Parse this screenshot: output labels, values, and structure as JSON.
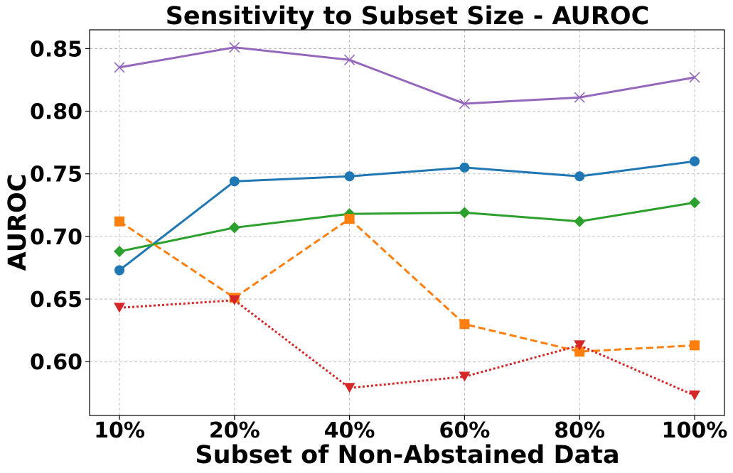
{
  "chart_data": {
    "type": "line",
    "title": "Sensitivity to Subset Size - AUROC",
    "xlabel": "Subset of Non-Abstained Data",
    "ylabel": "AUROC",
    "categories": [
      "10%",
      "20%",
      "40%",
      "60%",
      "80%",
      "100%"
    ],
    "ylim": [
      0.557,
      0.865
    ],
    "yticks": [
      0.6,
      0.65,
      0.7,
      0.75,
      0.8,
      0.85
    ],
    "ytick_labels": [
      "0.60",
      "0.65",
      "0.70",
      "0.75",
      "0.80",
      "0.85"
    ],
    "grid": true,
    "series": [
      {
        "values": [
          0.835,
          0.851,
          0.841,
          0.806,
          0.811,
          0.827
        ],
        "color": "#9467bd",
        "marker": "x",
        "linestyle": "solid"
      },
      {
        "values": [
          0.673,
          0.744,
          0.748,
          0.755,
          0.748,
          0.76
        ],
        "color": "#1f77b4",
        "marker": "circle",
        "linestyle": "solid"
      },
      {
        "values": [
          0.688,
          0.707,
          0.718,
          0.719,
          0.712,
          0.727
        ],
        "color": "#2ca02c",
        "marker": "diamond",
        "linestyle": "solid"
      },
      {
        "values": [
          0.712,
          0.651,
          0.714,
          0.63,
          0.608,
          0.613
        ],
        "color": "#ff7f0e",
        "marker": "square",
        "linestyle": "dashed"
      },
      {
        "values": [
          0.643,
          0.649,
          0.579,
          0.588,
          0.613,
          0.573
        ],
        "color": "#d62728",
        "marker": "triangle-down",
        "linestyle": "dotted"
      }
    ]
  }
}
